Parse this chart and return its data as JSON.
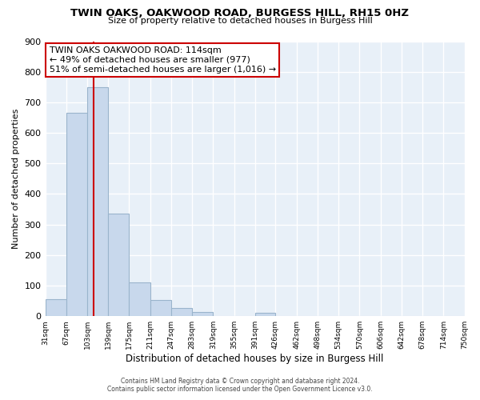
{
  "title": "TWIN OAKS, OAKWOOD ROAD, BURGESS HILL, RH15 0HZ",
  "subtitle": "Size of property relative to detached houses in Burgess Hill",
  "xlabel": "Distribution of detached houses by size in Burgess Hill",
  "ylabel": "Number of detached properties",
  "bin_edges": [
    31,
    67,
    103,
    139,
    175,
    211,
    247,
    283,
    319,
    355,
    391,
    426,
    462,
    498,
    534,
    570,
    606,
    642,
    678,
    714,
    750
  ],
  "bar_heights": [
    55,
    665,
    750,
    335,
    110,
    52,
    27,
    13,
    0,
    0,
    10,
    0,
    0,
    0,
    0,
    0,
    0,
    0,
    0,
    0
  ],
  "bar_color": "#c8d8ec",
  "bar_edge_color": "#9ab4cc",
  "property_line_x": 114,
  "property_line_color": "#cc0000",
  "annotation_title": "TWIN OAKS OAKWOOD ROAD: 114sqm",
  "annotation_line1": "← 49% of detached houses are smaller (977)",
  "annotation_line2": "51% of semi-detached houses are larger (1,016) →",
  "annotation_box_color": "#ffffff",
  "annotation_box_edge": "#cc0000",
  "ylim": [
    0,
    900
  ],
  "tick_labels": [
    "31sqm",
    "67sqm",
    "103sqm",
    "139sqm",
    "175sqm",
    "211sqm",
    "247sqm",
    "283sqm",
    "319sqm",
    "355sqm",
    "391sqm",
    "426sqm",
    "462sqm",
    "498sqm",
    "534sqm",
    "570sqm",
    "606sqm",
    "642sqm",
    "678sqm",
    "714sqm",
    "750sqm"
  ],
  "footnote1": "Contains HM Land Registry data © Crown copyright and database right 2024.",
  "footnote2": "Contains public sector information licensed under the Open Government Licence v3.0.",
  "bg_color": "#ffffff",
  "ax_bg_color": "#e8f0f8"
}
